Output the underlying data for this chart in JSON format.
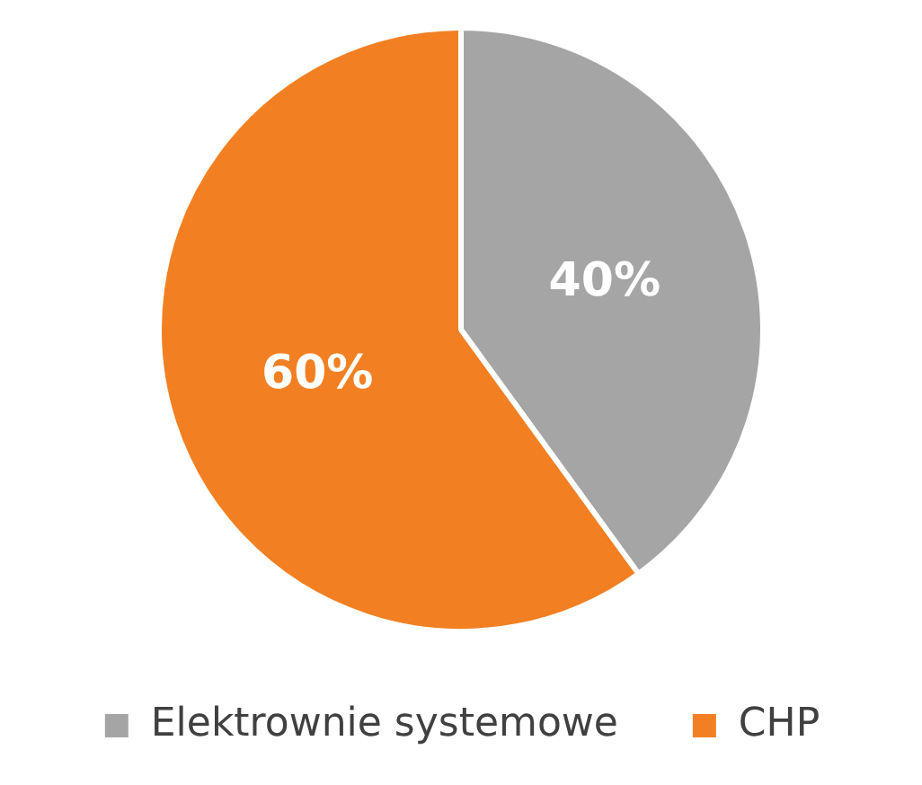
{
  "chart_data": {
    "type": "pie",
    "categories": [
      "Elektrownie systemowe",
      "CHP"
    ],
    "values": [
      40,
      60
    ],
    "colors": [
      "#a5a5a5",
      "#f28023"
    ],
    "value_labels": [
      "40%",
      "60%"
    ],
    "legend": "bottom"
  }
}
